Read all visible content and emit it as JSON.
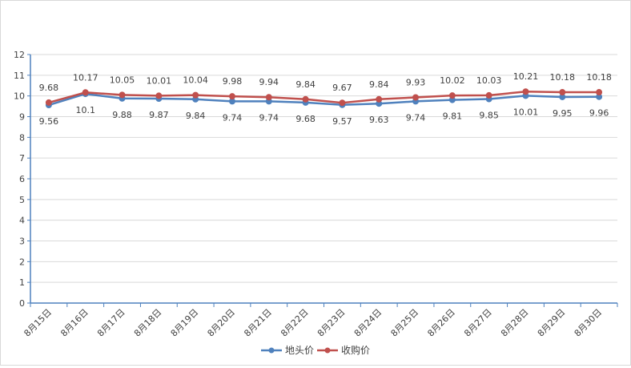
{
  "chart_data": {
    "type": "line",
    "title": "",
    "xlabel": "",
    "ylabel": "",
    "ylim": [
      0,
      12
    ],
    "yticks": [
      "0",
      "1",
      "2",
      "3",
      "4",
      "5",
      "6",
      "7",
      "8",
      "9",
      "10",
      "11",
      "12"
    ],
    "categories": [
      "8月15日",
      "8月16日",
      "8月17日",
      "8月18日",
      "8月19日",
      "8月20日",
      "8月21日",
      "8月22日",
      "8月23日",
      "8月24日",
      "8月25日",
      "8月26日",
      "8月27日",
      "8月28日",
      "8月29日",
      "8月30日"
    ],
    "grid": true,
    "legend_position": "bottom",
    "series": [
      {
        "name": "地头价",
        "color": "#4f81bd",
        "values": [
          9.56,
          10.1,
          9.88,
          9.87,
          9.84,
          9.74,
          9.74,
          9.68,
          9.57,
          9.63,
          9.74,
          9.81,
          9.85,
          10.01,
          9.95,
          9.96
        ],
        "labels": [
          "9.56",
          "10.1",
          "9.88",
          "9.87",
          "9.84",
          "9.74",
          "9.74",
          "9.68",
          "9.57",
          "9.63",
          "9.74",
          "9.81",
          "9.85",
          "10.01",
          "9.95",
          "9.96"
        ],
        "label_side": "below"
      },
      {
        "name": "收购价",
        "color": "#c0504d",
        "values": [
          9.68,
          10.17,
          10.05,
          10.01,
          10.04,
          9.98,
          9.94,
          9.84,
          9.67,
          9.84,
          9.93,
          10.02,
          10.03,
          10.21,
          10.18,
          10.18
        ],
        "labels": [
          "9.68",
          "10.17",
          "10.05",
          "10.01",
          "10.04",
          "9.98",
          "9.94",
          "9.84",
          "9.67",
          "9.84",
          "9.93",
          "10.02",
          "10.03",
          "10.21",
          "10.18",
          "10.18"
        ],
        "label_side": "above"
      }
    ]
  }
}
